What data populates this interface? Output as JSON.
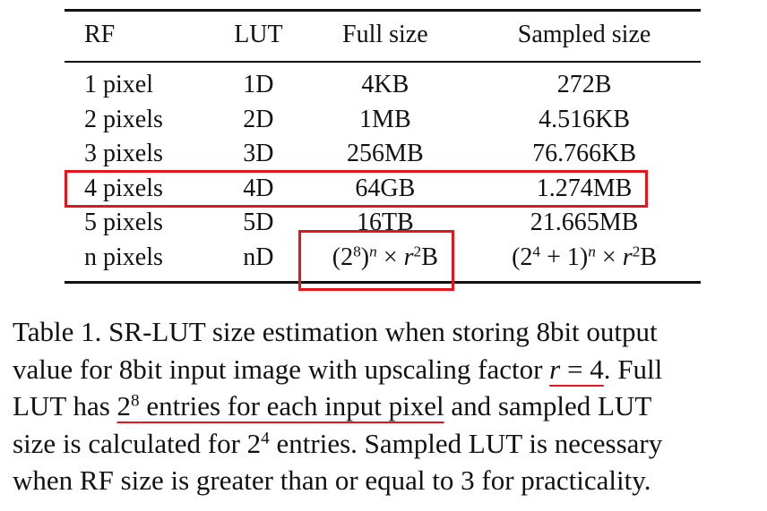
{
  "table": {
    "headers": [
      "RF",
      "LUT",
      "Full size",
      "Sampled size"
    ],
    "rows": [
      {
        "rf": "1 pixel",
        "lut": "1D",
        "full": "4KB",
        "sampled": "272B"
      },
      {
        "rf": "2 pixels",
        "lut": "2D",
        "full": "1MB",
        "sampled": "4.516KB"
      },
      {
        "rf": "3 pixels",
        "lut": "3D",
        "full": "256MB",
        "sampled": "76.766KB"
      },
      {
        "rf": "4 pixels",
        "lut": "4D",
        "full": "64GB",
        "sampled": "1.274MB"
      },
      {
        "rf": "5 pixels",
        "lut": "5D",
        "full": "16TB",
        "sampled": "21.665MB"
      },
      {
        "rf": "n pixels",
        "lut": "nD"
      }
    ],
    "formula_full": {
      "open": "(2",
      "exp1": "8",
      "close": ")",
      "exp_n": "n",
      "times": " × ",
      "r": "r",
      "exp2": "2",
      "unit": "B"
    },
    "formula_sampled": {
      "open": "(2",
      "exp1": "4",
      "plus": " + 1)",
      "exp_n": "n",
      "times": " × ",
      "r": "r",
      "exp2": "2",
      "unit": "B"
    },
    "highlight_color": "#e8141c"
  },
  "caption": {
    "line1": "Table 1.  SR-LUT size estimation when storing 8bit output",
    "line2_a": "value for 8bit input image with upscaling factor ",
    "line2_r": "r",
    "line2_eq": " = 4",
    "line2_b": ".  Full",
    "line3_a": "LUT has ",
    "line3_base": "2",
    "line3_exp": "8",
    "line3_u": " entries for each input pixel",
    "line3_b": " and sampled LUT",
    "line4_a": "size is calculated for ",
    "line4_base": "2",
    "line4_exp": "4",
    "line4_b": " entries.  Sampled LUT is necessary",
    "line5": "when RF size is greater than or equal to 3 for practicality."
  }
}
